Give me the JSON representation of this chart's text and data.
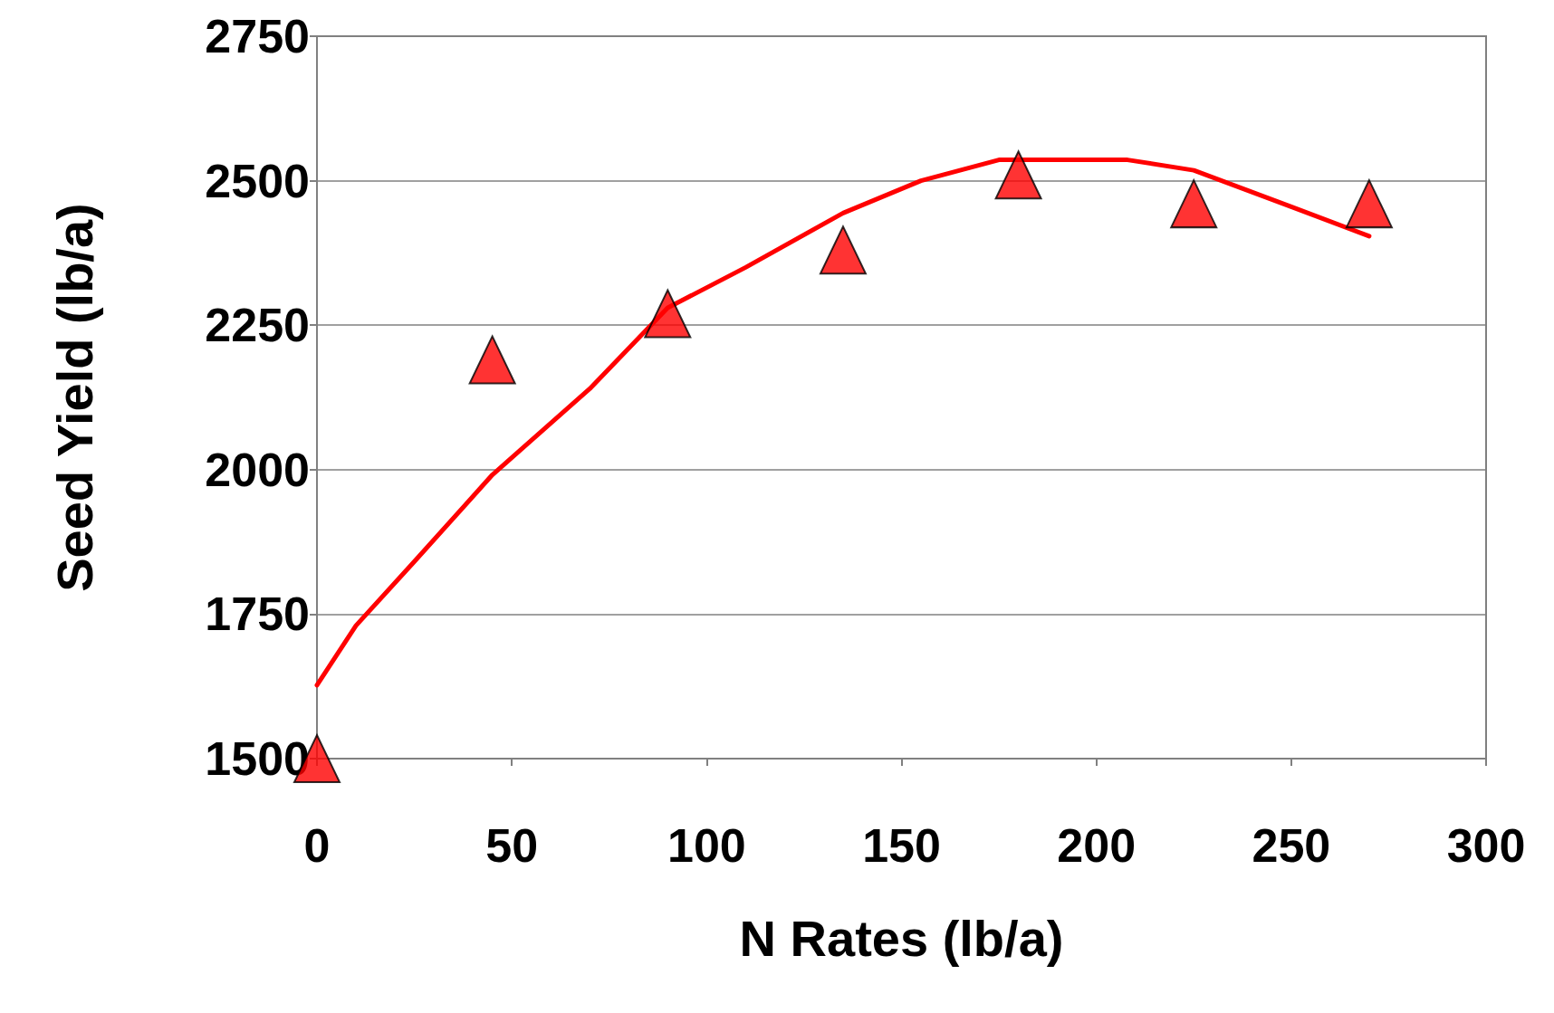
{
  "chart_data": {
    "type": "scatter",
    "xlabel": "N Rates (lb/a)",
    "ylabel": "Seed Yield (lb/a)",
    "xlim": [
      0,
      300
    ],
    "xticks": [
      0,
      50,
      100,
      150,
      200,
      250,
      300
    ],
    "ylim": [
      1500,
      2750
    ],
    "yticks": [
      1500,
      1750,
      2000,
      2250,
      2500,
      2750
    ],
    "grid": "y",
    "series": [
      {
        "type": "line",
        "color": "#ff0000",
        "marker": "none",
        "line_style": "solid",
        "x": [
          0,
          10,
          25,
          45,
          70,
          90,
          110,
          135,
          155,
          175,
          208,
          225,
          250,
          270
        ],
        "values": [
          1627,
          1730,
          1841,
          1991,
          2140,
          2280,
          2350,
          2444,
          2500,
          2536,
          2536,
          2518,
          2455,
          2404
        ]
      },
      {
        "color": "#ff0000",
        "marker": "triangle",
        "x": [
          0,
          45,
          90,
          135,
          180,
          225,
          270
        ],
        "values": [
          1500,
          2190,
          2270,
          2380,
          2510,
          2460,
          2460
        ]
      }
    ]
  }
}
